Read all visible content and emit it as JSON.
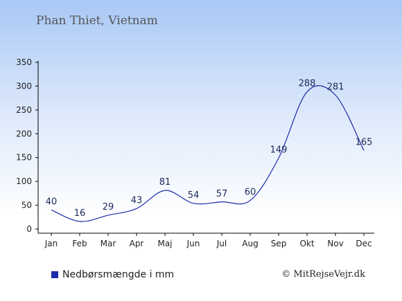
{
  "chart_data": {
    "type": "line",
    "title": "Phan Thiet, Vietnam",
    "categories": [
      "Jan",
      "Feb",
      "Mar",
      "Apr",
      "Maj",
      "Jun",
      "Jul",
      "Aug",
      "Sep",
      "Okt",
      "Nov",
      "Dec"
    ],
    "series": [
      {
        "name": "Nedbørsmængde i mm",
        "values": [
          40,
          16,
          29,
          43,
          81,
          54,
          57,
          60,
          149,
          288,
          281,
          165
        ]
      }
    ],
    "ylim": [
      0,
      350
    ],
    "yticks": [
      0,
      50,
      100,
      150,
      200,
      250,
      300,
      350
    ],
    "legend": "bottom-left",
    "grid": false,
    "line_color": "#1a2aa8"
  },
  "credit": "© MitRejseVejr.dk"
}
